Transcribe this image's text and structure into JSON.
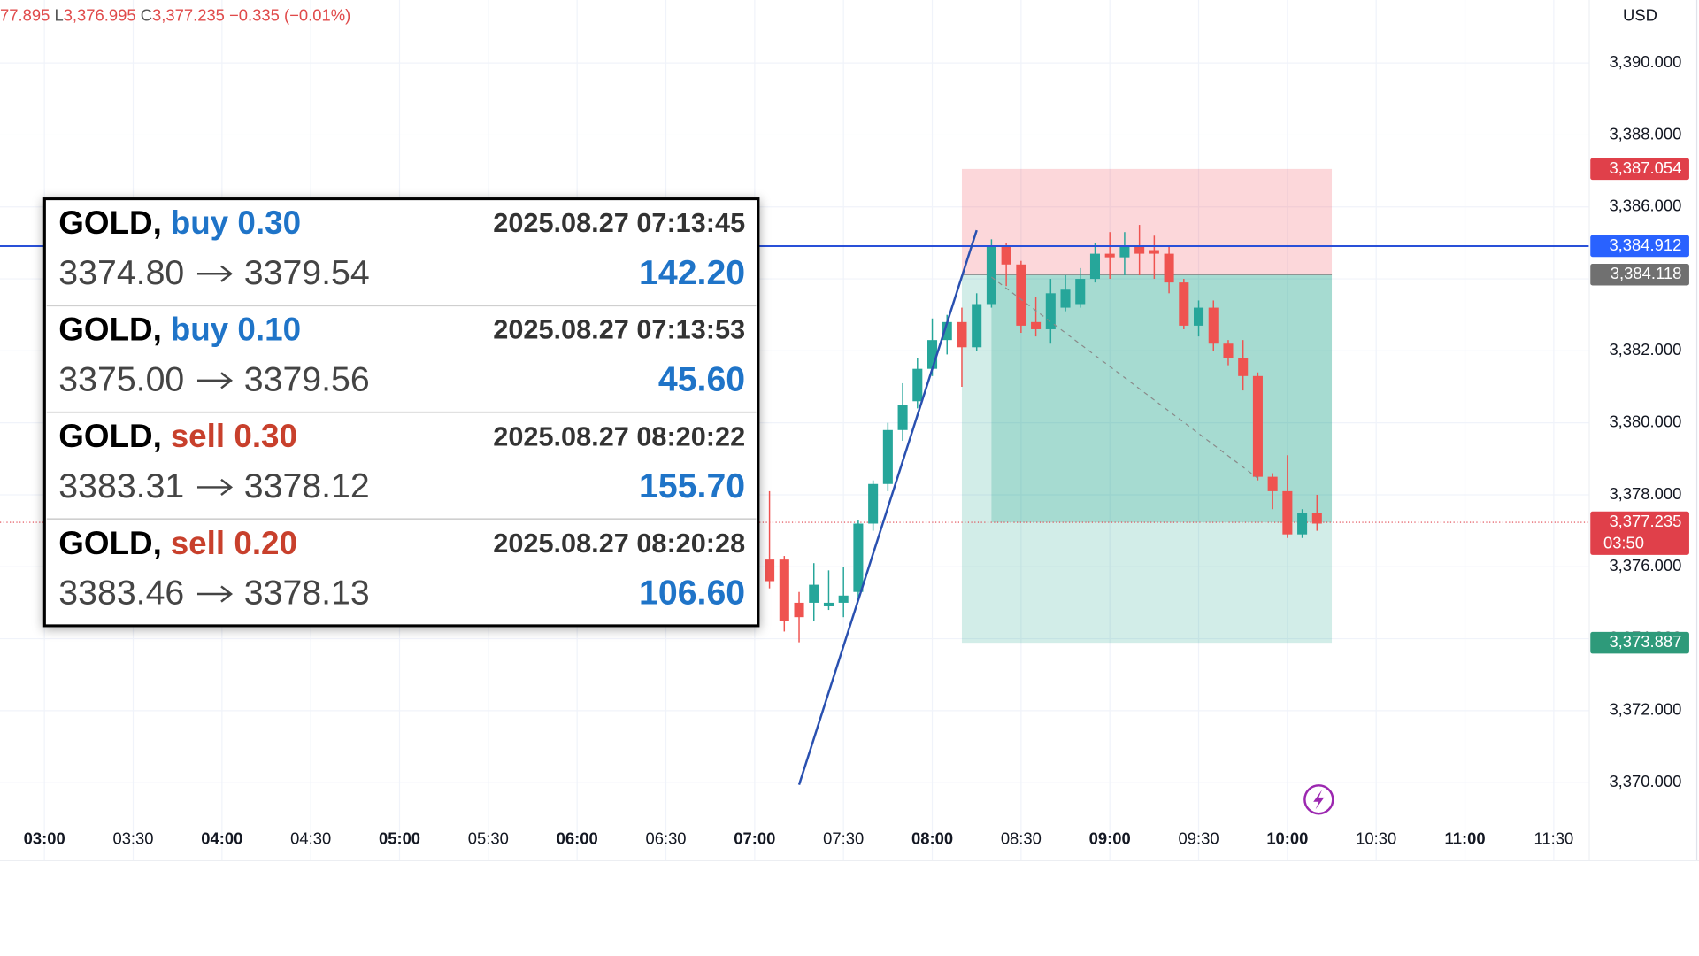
{
  "chart_data": {
    "type": "candlestick",
    "header": {
      "high_tail": "77.895",
      "low_key": "L",
      "low": "3,376.995",
      "close_key": "C",
      "close": "3,377.235",
      "change": "−0.335 (−0.01%)"
    },
    "currency": "USD",
    "xlim": [
      "02:45",
      "11:42"
    ],
    "xticks": [
      "03:00",
      "03:30",
      "04:00",
      "04:30",
      "05:00",
      "05:30",
      "06:00",
      "06:30",
      "07:00",
      "07:30",
      "08:00",
      "08:30",
      "09:00",
      "09:30",
      "10:00",
      "10:30",
      "11:00",
      "11:30"
    ],
    "ylim": [
      3367.9,
      3391.75
    ],
    "yticks": [
      {
        "value": 3390,
        "label": "3,390.000"
      },
      {
        "value": 3388,
        "label": "3,388.000"
      },
      {
        "value": 3386,
        "label": "3,386.000"
      },
      {
        "value": 3384,
        "label": "3,384.000"
      },
      {
        "value": 3382,
        "label": "3,382.000"
      },
      {
        "value": 3380,
        "label": "3,380.000"
      },
      {
        "value": 3378,
        "label": "3,378.000"
      },
      {
        "value": 3376,
        "label": "3,376.000"
      },
      {
        "value": 3374,
        "label": "3,374.000"
      },
      {
        "value": 3372,
        "label": "3,372.000"
      },
      {
        "value": 3370,
        "label": "3,370.000"
      }
    ],
    "grid": true,
    "up_color": "#26a69a",
    "down_color": "#ef5350",
    "x": [
      "07:05",
      "07:10",
      "07:15",
      "07:20",
      "07:25",
      "07:30",
      "07:35",
      "07:40",
      "07:45",
      "07:50",
      "07:55",
      "08:00",
      "08:05",
      "08:10",
      "08:15",
      "08:20",
      "08:25",
      "08:30",
      "08:35",
      "08:40",
      "08:45",
      "08:50",
      "08:55",
      "09:00",
      "09:05",
      "09:10",
      "09:15",
      "09:20",
      "09:25",
      "09:30",
      "09:35",
      "09:40",
      "09:45",
      "09:50",
      "09:55",
      "10:00",
      "10:05",
      "10:10"
    ],
    "open": [
      3376.2,
      3376.2,
      3375.0,
      3375.0,
      3374.9,
      3375.0,
      3375.3,
      3377.2,
      3378.3,
      3379.8,
      3380.6,
      3381.5,
      3382.3,
      3382.8,
      3382.1,
      3383.3,
      3384.9,
      3384.4,
      3382.8,
      3382.6,
      3383.2,
      3383.3,
      3384.0,
      3384.7,
      3384.6,
      3384.9,
      3384.8,
      3384.7,
      3383.9,
      3382.7,
      3383.2,
      3382.2,
      3381.8,
      3381.3,
      3378.5,
      3378.1,
      3376.9,
      3377.5
    ],
    "high": [
      3378.1,
      3376.3,
      3375.3,
      3376.1,
      3375.9,
      3376.0,
      3377.3,
      3378.4,
      3380.0,
      3381.1,
      3381.8,
      3382.9,
      3383.0,
      3383.2,
      3383.6,
      3385.1,
      3385.0,
      3384.5,
      3383.5,
      3384.0,
      3384.1,
      3384.3,
      3385.0,
      3385.3,
      3385.3,
      3385.5,
      3385.2,
      3384.9,
      3384.0,
      3383.4,
      3383.4,
      3382.3,
      3382.3,
      3381.4,
      3378.6,
      3379.1,
      3377.6,
      3378.0
    ],
    "low": [
      3375.4,
      3374.2,
      3373.9,
      3374.5,
      3374.8,
      3374.6,
      3375.1,
      3377.0,
      3378.1,
      3379.5,
      3380.4,
      3381.3,
      3381.9,
      3381.0,
      3382.0,
      3383.2,
      3383.8,
      3382.5,
      3382.4,
      3382.2,
      3383.1,
      3383.2,
      3383.9,
      3384.0,
      3384.1,
      3384.1,
      3384.0,
      3383.6,
      3382.6,
      3382.4,
      3382.0,
      3381.6,
      3380.9,
      3378.4,
      3377.6,
      3376.8,
      3376.8,
      3377.0
    ],
    "close": [
      3375.6,
      3374.5,
      3374.6,
      3375.5,
      3375.0,
      3375.2,
      3377.2,
      3378.3,
      3379.8,
      3380.5,
      3381.5,
      3382.3,
      3382.8,
      3382.1,
      3383.3,
      3384.9,
      3384.4,
      3382.7,
      3382.6,
      3383.6,
      3383.7,
      3384.0,
      3384.7,
      3384.6,
      3384.9,
      3384.7,
      3384.7,
      3383.9,
      3382.7,
      3383.2,
      3382.2,
      3381.8,
      3381.3,
      3378.5,
      3378.1,
      3376.9,
      3377.5,
      3377.2
    ],
    "position": {
      "start": "08:10",
      "active_start": "08:20",
      "end": "10:15",
      "entry": 3384.118,
      "stop": 3387.054,
      "target": 3373.887,
      "current": 3377.235
    },
    "hline": {
      "value": 3384.912,
      "color": "#2950d8"
    },
    "trendline": {
      "x": [
        "07:15",
        "08:15"
      ],
      "y": [
        3369.94,
        3385.35
      ],
      "color": "#2950b0"
    },
    "dashed_line": {
      "x": [
        "08:20",
        "09:50"
      ],
      "y": [
        3384.05,
        3378.46
      ]
    },
    "price_tags": [
      {
        "value": 3387.054,
        "label": "3,387.054",
        "color": "#e0404a"
      },
      {
        "value": 3384.912,
        "label": "3,384.912",
        "color": "#2962ff"
      },
      {
        "value": 3384.118,
        "label": "3,384.118",
        "color": "#707070"
      },
      {
        "value": 3377.235,
        "label": "3,377.235",
        "color": "#e0404a",
        "countdown": "03:50"
      },
      {
        "value": 3373.887,
        "label": "3,373.887",
        "color": "#2e9a7a"
      }
    ]
  },
  "trades": [
    {
      "symbol": "GOLD,",
      "side": "buy 0.30",
      "side_color": "#1f74c8",
      "time": "2025.08.27 07:13:45",
      "from": "3374.80",
      "to": "3379.54",
      "profit": "142.20"
    },
    {
      "symbol": "GOLD,",
      "side": "buy 0.10",
      "side_color": "#1f74c8",
      "time": "2025.08.27 07:13:53",
      "from": "3375.00",
      "to": "3379.56",
      "profit": "45.60"
    },
    {
      "symbol": "GOLD,",
      "side": "sell 0.30",
      "side_color": "#c8402c",
      "time": "2025.08.27 08:20:22",
      "from": "3383.31",
      "to": "3378.12",
      "profit": "155.70"
    },
    {
      "symbol": "GOLD,",
      "side": "sell 0.20",
      "side_color": "#c8402c",
      "time": "2025.08.27 08:20:28",
      "from": "3383.46",
      "to": "3378.13",
      "profit": "106.60"
    }
  ]
}
